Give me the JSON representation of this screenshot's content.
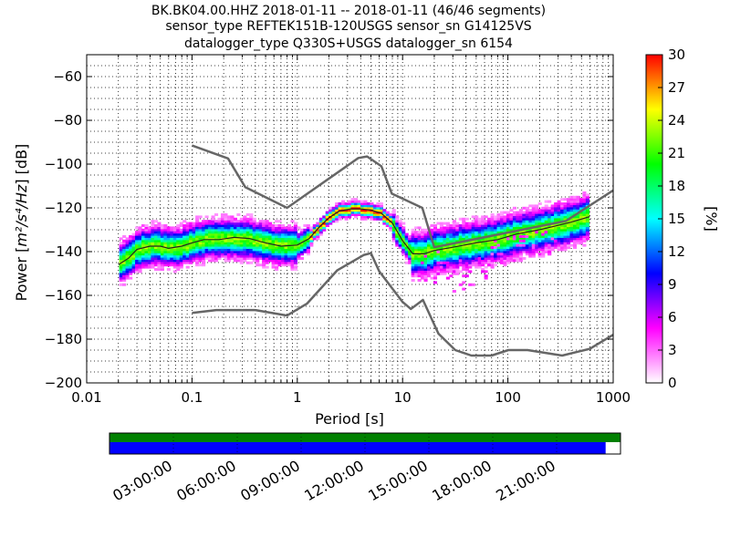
{
  "title_lines": [
    "BK.BK04.00.HHZ   2018-01-11 -- 2018-01-11  (46/46 segments)",
    "sensor_type REFTEK151B-120USGS sensor_sn G14125VS",
    "datalogger_type Q330S+USGS datalogger_sn 6154"
  ],
  "chart_data": {
    "type": "heatmap",
    "x_scale": "log",
    "xlabel": "Period [s]",
    "ylabel_prefix": "Power [",
    "ylabel_math": "m²/s⁴/Hz",
    "ylabel_suffix": "] [dB]",
    "xlim": [
      0.01,
      1000
    ],
    "ylim": [
      -200,
      -50
    ],
    "x_ticks": [
      0.01,
      0.1,
      1,
      10,
      100,
      1000
    ],
    "x_tick_labels": [
      "0.01",
      "0.1",
      "1",
      "10",
      "100",
      "1000"
    ],
    "y_ticks": [
      -200,
      -180,
      -160,
      -140,
      -120,
      -100,
      -80,
      -60
    ],
    "y_tick_labels": [
      "−200",
      "−180",
      "−160",
      "−140",
      "−120",
      "−100",
      "−80",
      "−60"
    ],
    "grid": "dotted",
    "noise_models": [
      {
        "points": [
          [
            0.1,
            -91.5
          ],
          [
            0.22,
            -97.4
          ],
          [
            0.32,
            -110.5
          ],
          [
            0.8,
            -120
          ],
          [
            3.8,
            -97.2
          ],
          [
            4.6,
            -96.5
          ],
          [
            6.3,
            -101
          ],
          [
            7.9,
            -113.5
          ],
          [
            15.4,
            -120
          ],
          [
            20,
            -138
          ],
          [
            354.8,
            -126
          ],
          [
            1000,
            -112
          ]
        ]
      },
      {
        "points": [
          [
            0.1,
            -168
          ],
          [
            0.17,
            -166.7
          ],
          [
            0.4,
            -166.7
          ],
          [
            0.8,
            -169.2
          ],
          [
            1.24,
            -163.7
          ],
          [
            2.4,
            -148.5
          ],
          [
            4.3,
            -141.5
          ],
          [
            5,
            -140.7
          ],
          [
            6,
            -149
          ],
          [
            10,
            -163
          ],
          [
            12,
            -166.2
          ],
          [
            15.6,
            -162.1
          ],
          [
            21.9,
            -177.5
          ],
          [
            31.6,
            -185
          ],
          [
            45,
            -187.5
          ],
          [
            70,
            -187.5
          ],
          [
            101,
            -185
          ],
          [
            154,
            -185
          ],
          [
            328,
            -187.5
          ],
          [
            600,
            -184.4
          ],
          [
            1000,
            -178
          ]
        ]
      }
    ],
    "psd_mean_curve": {
      "points": [
        [
          0.02,
          -146
        ],
        [
          0.025,
          -143
        ],
        [
          0.03,
          -139
        ],
        [
          0.04,
          -137.5
        ],
        [
          0.05,
          -137.5
        ],
        [
          0.06,
          -138.5
        ],
        [
          0.08,
          -137.5
        ],
        [
          0.1,
          -136
        ],
        [
          0.13,
          -134.5
        ],
        [
          0.18,
          -134.5
        ],
        [
          0.25,
          -133.5
        ],
        [
          0.35,
          -134
        ],
        [
          0.5,
          -136
        ],
        [
          0.7,
          -137.5
        ],
        [
          1.0,
          -137
        ],
        [
          1.3,
          -134
        ],
        [
          1.6,
          -129
        ],
        [
          2.0,
          -124.5
        ],
        [
          2.5,
          -121.5
        ],
        [
          3.2,
          -120.5
        ],
        [
          4.0,
          -120.5
        ],
        [
          5.0,
          -121
        ],
        [
          6.3,
          -122.5
        ],
        [
          8.0,
          -127
        ],
        [
          10,
          -135
        ],
        [
          12.5,
          -141
        ],
        [
          16,
          -141
        ],
        [
          20,
          -139.5
        ],
        [
          30,
          -138
        ],
        [
          50,
          -136
        ],
        [
          80,
          -134.5
        ],
        [
          120,
          -132
        ],
        [
          200,
          -130
        ],
        [
          300,
          -128
        ],
        [
          400,
          -126.5
        ],
        [
          600,
          -124
        ]
      ]
    },
    "colorbar": {
      "label": "[%]",
      "min": 0,
      "max": 30,
      "ticks": [
        0,
        3,
        6,
        9,
        12,
        15,
        18,
        21,
        24,
        27,
        30
      ],
      "tick_labels": [
        "0",
        "3",
        "6",
        "9",
        "12",
        "15",
        "18",
        "21",
        "24",
        "27",
        "30"
      ],
      "colormap": "pqlx",
      "colormap_stops": [
        "#ffffff",
        "#ff00ff",
        "#0000ff",
        "#00ffff",
        "#00ff00",
        "#ffff00",
        "#ff0000"
      ]
    }
  },
  "timeline": {
    "tick_labels": [
      "03:00:00",
      "06:00:00",
      "09:00:00",
      "12:00:00",
      "15:00:00",
      "18:00:00",
      "21:00:00"
    ],
    "tick_hours": [
      3,
      6,
      9,
      12,
      15,
      18,
      21
    ],
    "span_hours": 24,
    "data_coverage_end_hour": 23.3,
    "upper_bar_color": "#008000",
    "lower_bar_color": "#0000ff"
  }
}
